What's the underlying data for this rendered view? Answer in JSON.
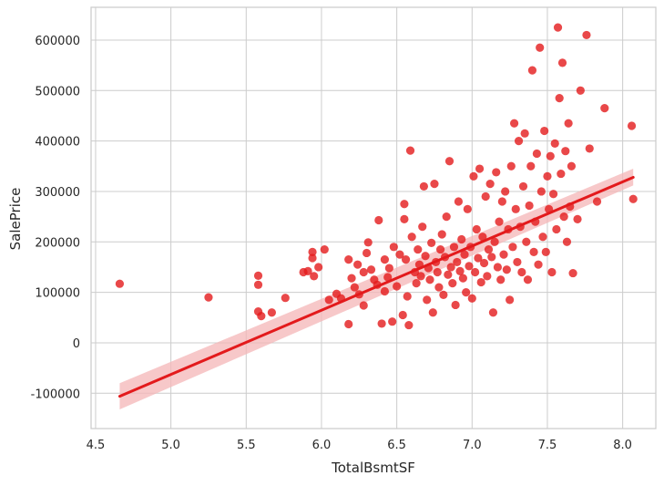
{
  "chart_data": {
    "type": "scatter",
    "title": "",
    "xlabel": "TotalBsmtSF",
    "ylabel": "SalePrice",
    "xlim": [
      4.47,
      8.22
    ],
    "ylim": [
      -170000,
      665000
    ],
    "x_ticks": [
      4.5,
      5.0,
      5.5,
      6.0,
      6.5,
      7.0,
      7.5,
      8.0
    ],
    "x_tick_labels": [
      "4.5",
      "5.0",
      "5.5",
      "6.0",
      "6.5",
      "7.0",
      "7.5",
      "8.0"
    ],
    "y_ticks": [
      -100000,
      0,
      100000,
      200000,
      300000,
      400000,
      500000,
      600000
    ],
    "y_tick_labels": [
      "-100000",
      "0",
      "100000",
      "200000",
      "300000",
      "400000",
      "500000",
      "600000"
    ],
    "grid": true,
    "colors": {
      "points": "#e31a1c",
      "line": "#e31a1c",
      "band": "#f4b6b7",
      "grid": "#cccccc",
      "background": "#ffffff"
    },
    "regression": {
      "x": [
        4.66,
        8.07
      ],
      "y": [
        -106000,
        328000
      ],
      "ci_start": [
        -132000,
        -80000
      ],
      "ci_end": [
        312000,
        345000
      ]
    },
    "points": [
      [
        4.66,
        117000
      ],
      [
        5.25,
        90000
      ],
      [
        5.58,
        133000
      ],
      [
        5.58,
        115000
      ],
      [
        5.58,
        62000
      ],
      [
        5.6,
        53000
      ],
      [
        5.67,
        60000
      ],
      [
        5.76,
        89000
      ],
      [
        5.88,
        140000
      ],
      [
        5.91,
        142000
      ],
      [
        5.94,
        180000
      ],
      [
        5.94,
        168000
      ],
      [
        5.95,
        132000
      ],
      [
        5.98,
        150000
      ],
      [
        6.02,
        185000
      ],
      [
        6.05,
        85000
      ],
      [
        6.1,
        97000
      ],
      [
        6.13,
        88000
      ],
      [
        6.18,
        37000
      ],
      [
        6.18,
        165000
      ],
      [
        6.2,
        128000
      ],
      [
        6.22,
        110000
      ],
      [
        6.24,
        155000
      ],
      [
        6.25,
        96000
      ],
      [
        6.28,
        140000
      ],
      [
        6.28,
        74000
      ],
      [
        6.3,
        178000
      ],
      [
        6.31,
        199000
      ],
      [
        6.33,
        145000
      ],
      [
        6.35,
        125000
      ],
      [
        6.37,
        115000
      ],
      [
        6.38,
        243000
      ],
      [
        6.4,
        38000
      ],
      [
        6.42,
        165000
      ],
      [
        6.42,
        102000
      ],
      [
        6.44,
        130000
      ],
      [
        6.45,
        148000
      ],
      [
        6.47,
        42000
      ],
      [
        6.48,
        190000
      ],
      [
        6.5,
        112000
      ],
      [
        6.52,
        175000
      ],
      [
        6.54,
        55000
      ],
      [
        6.55,
        275000
      ],
      [
        6.55,
        245000
      ],
      [
        6.56,
        165000
      ],
      [
        6.57,
        92000
      ],
      [
        6.58,
        35000
      ],
      [
        6.59,
        381000
      ],
      [
        6.6,
        210000
      ],
      [
        6.62,
        140000
      ],
      [
        6.63,
        118000
      ],
      [
        6.64,
        185000
      ],
      [
        6.65,
        155000
      ],
      [
        6.66,
        132000
      ],
      [
        6.67,
        230000
      ],
      [
        6.68,
        310000
      ],
      [
        6.69,
        172000
      ],
      [
        6.7,
        85000
      ],
      [
        6.71,
        148000
      ],
      [
        6.72,
        125000
      ],
      [
        6.73,
        198000
      ],
      [
        6.74,
        60000
      ],
      [
        6.75,
        315000
      ],
      [
        6.76,
        160000
      ],
      [
        6.77,
        140000
      ],
      [
        6.78,
        110000
      ],
      [
        6.79,
        185000
      ],
      [
        6.8,
        215000
      ],
      [
        6.81,
        95000
      ],
      [
        6.82,
        170000
      ],
      [
        6.83,
        250000
      ],
      [
        6.84,
        135000
      ],
      [
        6.85,
        360000
      ],
      [
        6.86,
        150000
      ],
      [
        6.87,
        118000
      ],
      [
        6.88,
        190000
      ],
      [
        6.89,
        75000
      ],
      [
        6.9,
        160000
      ],
      [
        6.91,
        280000
      ],
      [
        6.92,
        142000
      ],
      [
        6.93,
        205000
      ],
      [
        6.94,
        128000
      ],
      [
        6.95,
        175000
      ],
      [
        6.96,
        100000
      ],
      [
        6.97,
        265000
      ],
      [
        6.98,
        152000
      ],
      [
        6.99,
        190000
      ],
      [
        7.0,
        88000
      ],
      [
        7.01,
        330000
      ],
      [
        7.02,
        140000
      ],
      [
        7.03,
        225000
      ],
      [
        7.04,
        168000
      ],
      [
        7.05,
        345000
      ],
      [
        7.06,
        120000
      ],
      [
        7.07,
        210000
      ],
      [
        7.08,
        158000
      ],
      [
        7.09,
        290000
      ],
      [
        7.1,
        132000
      ],
      [
        7.11,
        185000
      ],
      [
        7.12,
        315000
      ],
      [
        7.13,
        170000
      ],
      [
        7.14,
        60000
      ],
      [
        7.15,
        200000
      ],
      [
        7.16,
        338000
      ],
      [
        7.17,
        150000
      ],
      [
        7.18,
        240000
      ],
      [
        7.19,
        125000
      ],
      [
        7.2,
        280000
      ],
      [
        7.21,
        175000
      ],
      [
        7.22,
        300000
      ],
      [
        7.23,
        145000
      ],
      [
        7.24,
        225000
      ],
      [
        7.25,
        85000
      ],
      [
        7.26,
        350000
      ],
      [
        7.27,
        190000
      ],
      [
        7.28,
        435000
      ],
      [
        7.29,
        265000
      ],
      [
        7.3,
        160000
      ],
      [
        7.31,
        400000
      ],
      [
        7.32,
        230000
      ],
      [
        7.33,
        140000
      ],
      [
        7.34,
        310000
      ],
      [
        7.35,
        415000
      ],
      [
        7.36,
        200000
      ],
      [
        7.37,
        125000
      ],
      [
        7.38,
        272000
      ],
      [
        7.39,
        350000
      ],
      [
        7.4,
        540000
      ],
      [
        7.41,
        180000
      ],
      [
        7.42,
        240000
      ],
      [
        7.43,
        375000
      ],
      [
        7.44,
        155000
      ],
      [
        7.45,
        585000
      ],
      [
        7.46,
        300000
      ],
      [
        7.47,
        210000
      ],
      [
        7.48,
        420000
      ],
      [
        7.49,
        180000
      ],
      [
        7.5,
        330000
      ],
      [
        7.51,
        265000
      ],
      [
        7.52,
        370000
      ],
      [
        7.53,
        140000
      ],
      [
        7.54,
        295000
      ],
      [
        7.55,
        395000
      ],
      [
        7.56,
        225000
      ],
      [
        7.57,
        625000
      ],
      [
        7.58,
        485000
      ],
      [
        7.59,
        335000
      ],
      [
        7.6,
        555000
      ],
      [
        7.61,
        250000
      ],
      [
        7.62,
        380000
      ],
      [
        7.63,
        200000
      ],
      [
        7.64,
        435000
      ],
      [
        7.65,
        270000
      ],
      [
        7.66,
        350000
      ],
      [
        7.67,
        138000
      ],
      [
        7.7,
        245000
      ],
      [
        7.72,
        500000
      ],
      [
        7.76,
        610000
      ],
      [
        7.78,
        385000
      ],
      [
        7.83,
        280000
      ],
      [
        7.88,
        465000
      ],
      [
        8.06,
        430000
      ],
      [
        8.07,
        285000
      ]
    ]
  }
}
